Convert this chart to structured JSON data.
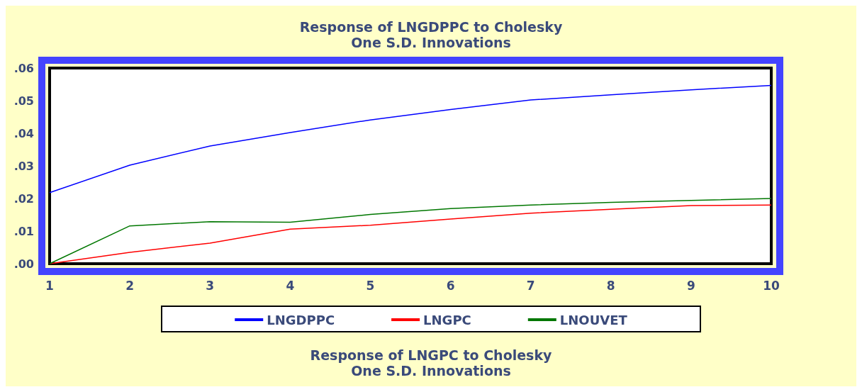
{
  "chart_data": {
    "type": "line",
    "title": "Response of LNGDPPC to Cholesky\nOne S.D. Innovations",
    "categories": [
      "1",
      "2",
      "3",
      "4",
      "5",
      "6",
      "7",
      "8",
      "9",
      "10"
    ],
    "series": [
      {
        "name": "LNGDPPC",
        "color": "#0000ff",
        "values": [
          0.0218,
          0.0302,
          0.0361,
          0.0402,
          0.0441,
          0.0473,
          0.0502,
          0.0518,
          0.0533,
          0.0547
        ]
      },
      {
        "name": "LNGPC",
        "color": "#ff0000",
        "values": [
          0,
          0.0035,
          0.0063,
          0.0106,
          0.0118,
          0.0137,
          0.0155,
          0.0167,
          0.0178,
          0.018
        ]
      },
      {
        "name": "LNOUVET",
        "color": "#007700",
        "values": [
          0,
          0.0116,
          0.0129,
          0.0127,
          0.0151,
          0.0169,
          0.018,
          0.0188,
          0.0194,
          0.02
        ]
      }
    ],
    "ylim": [
      0,
      0.06
    ],
    "yticks": [
      {
        "value": 0,
        "label": ".00"
      },
      {
        "value": 0.01,
        "label": ".01"
      },
      {
        "value": 0.02,
        "label": ".02"
      },
      {
        "value": 0.03,
        "label": ".03"
      },
      {
        "value": 0.04,
        "label": ".04"
      },
      {
        "value": 0.05,
        "label": ".05"
      },
      {
        "value": 0.06,
        "label": ".06"
      }
    ],
    "grid": false,
    "legend": "bottom",
    "marker": "none",
    "line_style": "solid",
    "annotations": [
      "Response of LNGPC to Cholesky\nOne S.D. Innovations"
    ]
  }
}
